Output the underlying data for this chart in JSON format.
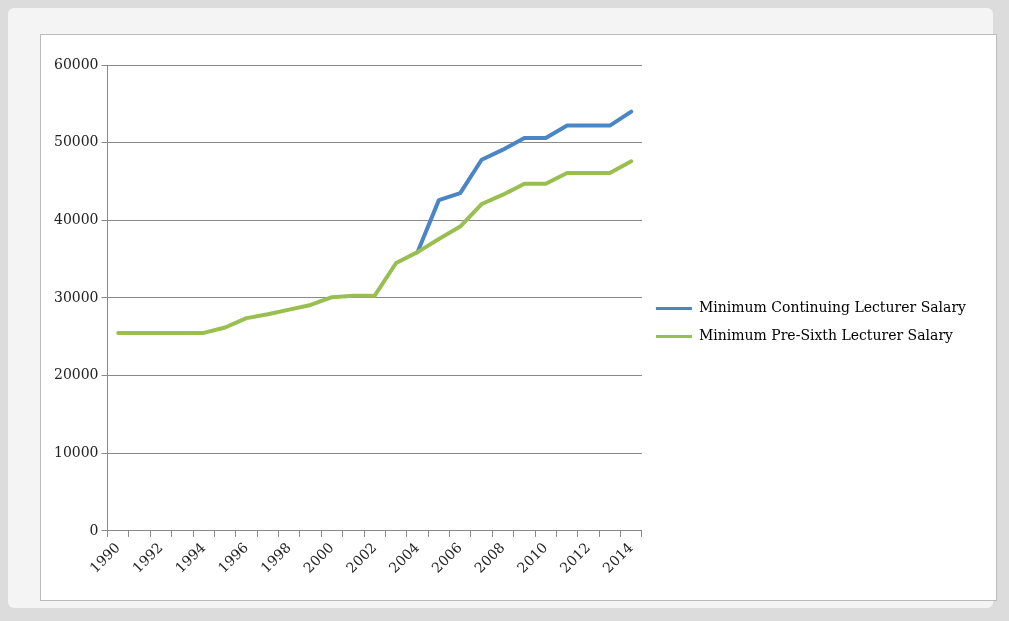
{
  "chart_data": {
    "type": "line",
    "categories": [
      "1990",
      null,
      "1992",
      null,
      "1994",
      null,
      "1996",
      null,
      "1998",
      null,
      "2000",
      null,
      "2002",
      null,
      "2004",
      null,
      "2006",
      null,
      "2008",
      null,
      "2010",
      null,
      "2012",
      null,
      "2014"
    ],
    "series": [
      {
        "name": "Minimum Continuing Lecturer Salary",
        "color": "#4a86c6",
        "values": [
          null,
          null,
          null,
          null,
          null,
          null,
          null,
          null,
          null,
          null,
          null,
          null,
          null,
          null,
          35900,
          42600,
          43500,
          47800,
          49100,
          50600,
          50600,
          52200,
          52200,
          52200,
          54000
        ]
      },
      {
        "name": "Minimum Pre-Sixth Lecturer Salary",
        "color": "#98bf4f",
        "values": [
          25500,
          25500,
          25500,
          25500,
          25500,
          26200,
          27400,
          27900,
          28500,
          29100,
          30100,
          30300,
          30300,
          34500,
          35900,
          37600,
          39200,
          42100,
          43300,
          44700,
          44700,
          46100,
          46100,
          46100,
          47600
        ]
      }
    ],
    "ylim": [
      0,
      60000
    ],
    "yticks": [
      0,
      10000,
      20000,
      30000,
      40000,
      50000,
      60000
    ],
    "grid": "y",
    "legend": "right",
    "marker": "none",
    "line_style": "solid"
  }
}
